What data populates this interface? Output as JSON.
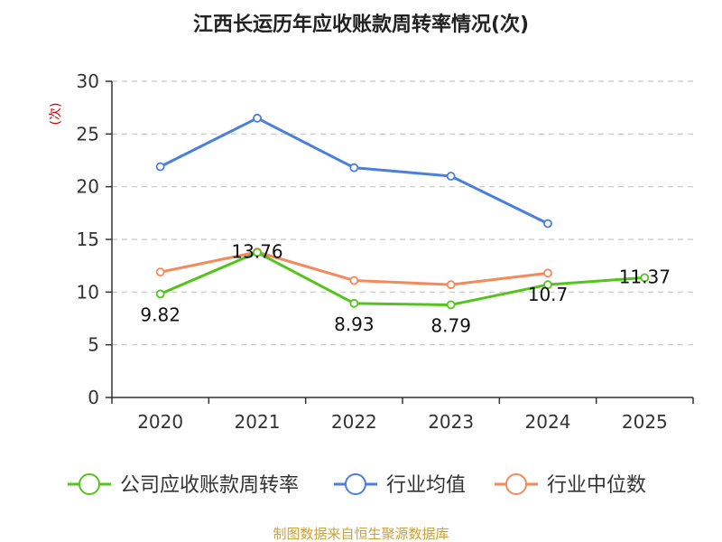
{
  "chart_data": {
    "type": "line",
    "title": "江西长运历年应收账款周转率情况(次)",
    "ylabel": "(次)",
    "ylim": [
      0,
      30
    ],
    "yticks": [
      0,
      5,
      10,
      15,
      20,
      25,
      30
    ],
    "categories": [
      "2020",
      "2021",
      "2022",
      "2023",
      "2024",
      "2025"
    ],
    "grid": true,
    "legend_position": "bottom",
    "series": [
      {
        "name": "公司应收账款周转率",
        "color": "#52c41a",
        "values": [
          9.82,
          13.76,
          8.93,
          8.79,
          10.7,
          11.37
        ],
        "labels": [
          "9.82",
          "13.76",
          "8.93",
          "8.79",
          "10.7",
          "11.37"
        ]
      },
      {
        "name": "行业均值",
        "color": "#4a7fdc",
        "values": [
          21.9,
          26.5,
          21.8,
          21.0,
          16.5,
          null
        ]
      },
      {
        "name": "行业中位数",
        "color": "#f5895a",
        "values": [
          11.9,
          13.8,
          11.1,
          10.7,
          11.8,
          null
        ]
      }
    ]
  },
  "source_text": "制图数据来自恒生聚源数据库",
  "ylabel_color": "#cc0000",
  "source_color": "#c8a23c"
}
